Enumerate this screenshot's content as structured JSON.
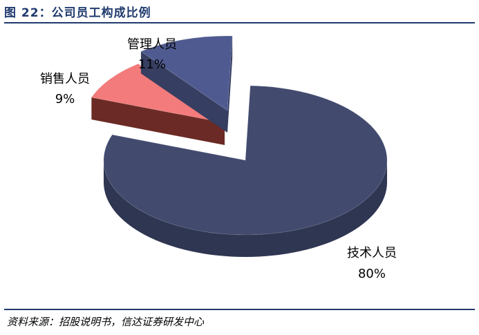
{
  "figure": {
    "title": "图 22：公司员工构成比例",
    "source": "资料来源：招股说明书，信达证券研发中心"
  },
  "chart_data": {
    "type": "pie",
    "title": "图 22：公司员工构成比例",
    "style": "3d-exploded",
    "slices": [
      {
        "label": "技术人员",
        "value": 80,
        "pct_label": "80%",
        "color": "#424b6e",
        "side": "#2f3652"
      },
      {
        "label": "销售人员",
        "value": 9,
        "pct_label": "9%",
        "color": "#f37b7b",
        "side": "#6b2a25"
      },
      {
        "label": "管理人员",
        "value": 11,
        "pct_label": "11%",
        "color": "#4f5b90",
        "side": "#363e61"
      }
    ]
  }
}
